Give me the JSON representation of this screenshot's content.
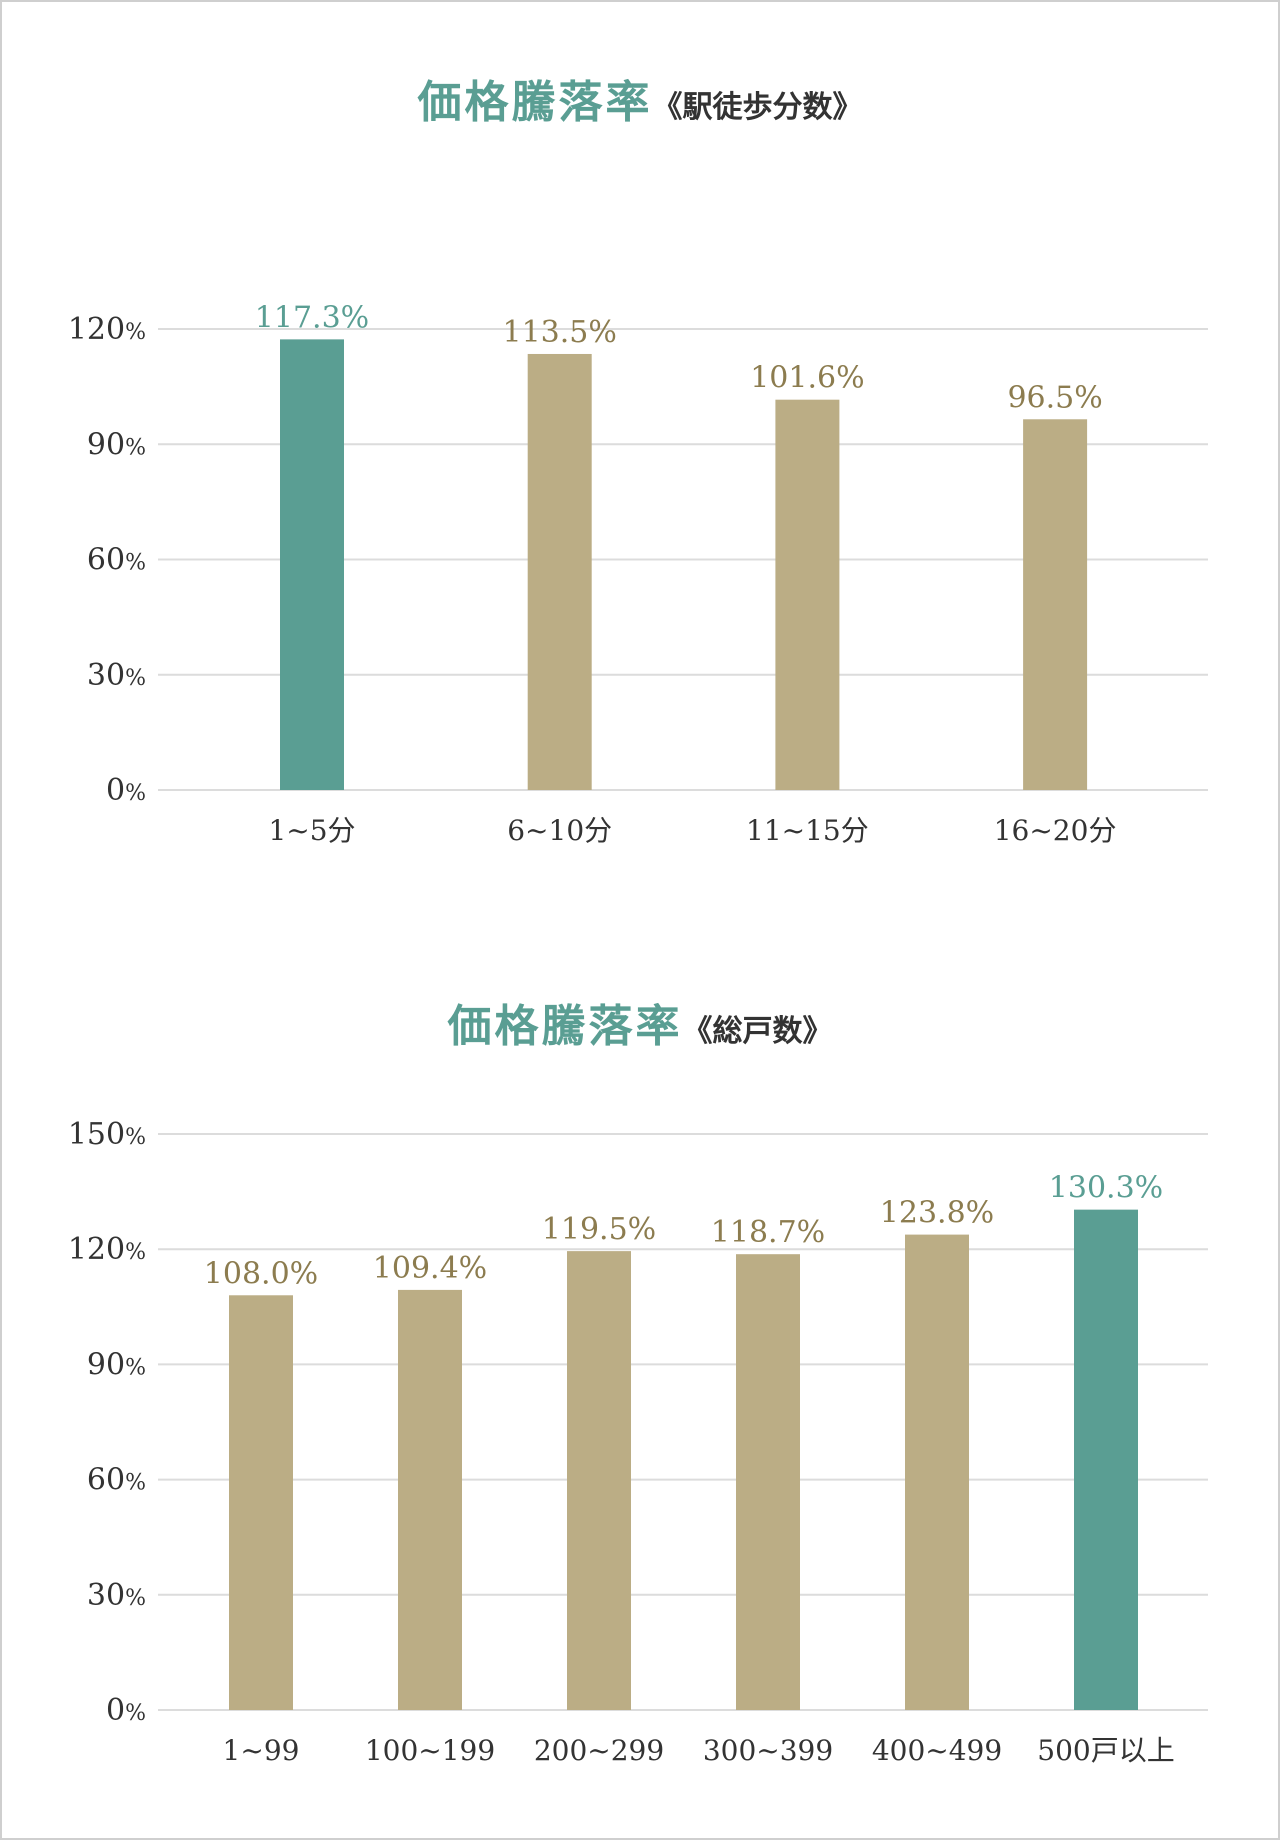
{
  "colors": {
    "accent": "#5a9e93",
    "bar": "#bbad85",
    "value_label": "#8c7c4f",
    "grid": "#dcdcdc",
    "text": "#333333"
  },
  "chart_data": [
    {
      "type": "bar",
      "title": "価格騰落率",
      "subtitle": "《駅徒歩分数》",
      "categories": [
        "1~5分",
        "6~10分",
        "11~15分",
        "16~20分"
      ],
      "values": [
        117.3,
        113.5,
        101.6,
        96.5
      ],
      "value_labels": [
        "117.3%",
        "113.5%",
        "101.6%",
        "96.5%"
      ],
      "highlight_index": 0,
      "y_ticks": [
        "0%",
        "30%",
        "60%",
        "90%",
        "120%"
      ],
      "ylim": [
        0,
        120
      ],
      "grid": true
    },
    {
      "type": "bar",
      "title": "価格騰落率",
      "subtitle": "《総戸数》",
      "categories": [
        "1~99",
        "100~199",
        "200~299",
        "300~399",
        "400~499",
        "500戸以上"
      ],
      "values": [
        108.0,
        109.4,
        119.5,
        118.7,
        123.8,
        130.3
      ],
      "value_labels": [
        "108.0%",
        "109.4%",
        "119.5%",
        "118.7%",
        "123.8%",
        "130.3%"
      ],
      "highlight_index": 5,
      "y_ticks": [
        "0%",
        "30%",
        "60%",
        "90%",
        "120%",
        "150%"
      ],
      "ylim": [
        0,
        150
      ],
      "grid": true
    }
  ]
}
